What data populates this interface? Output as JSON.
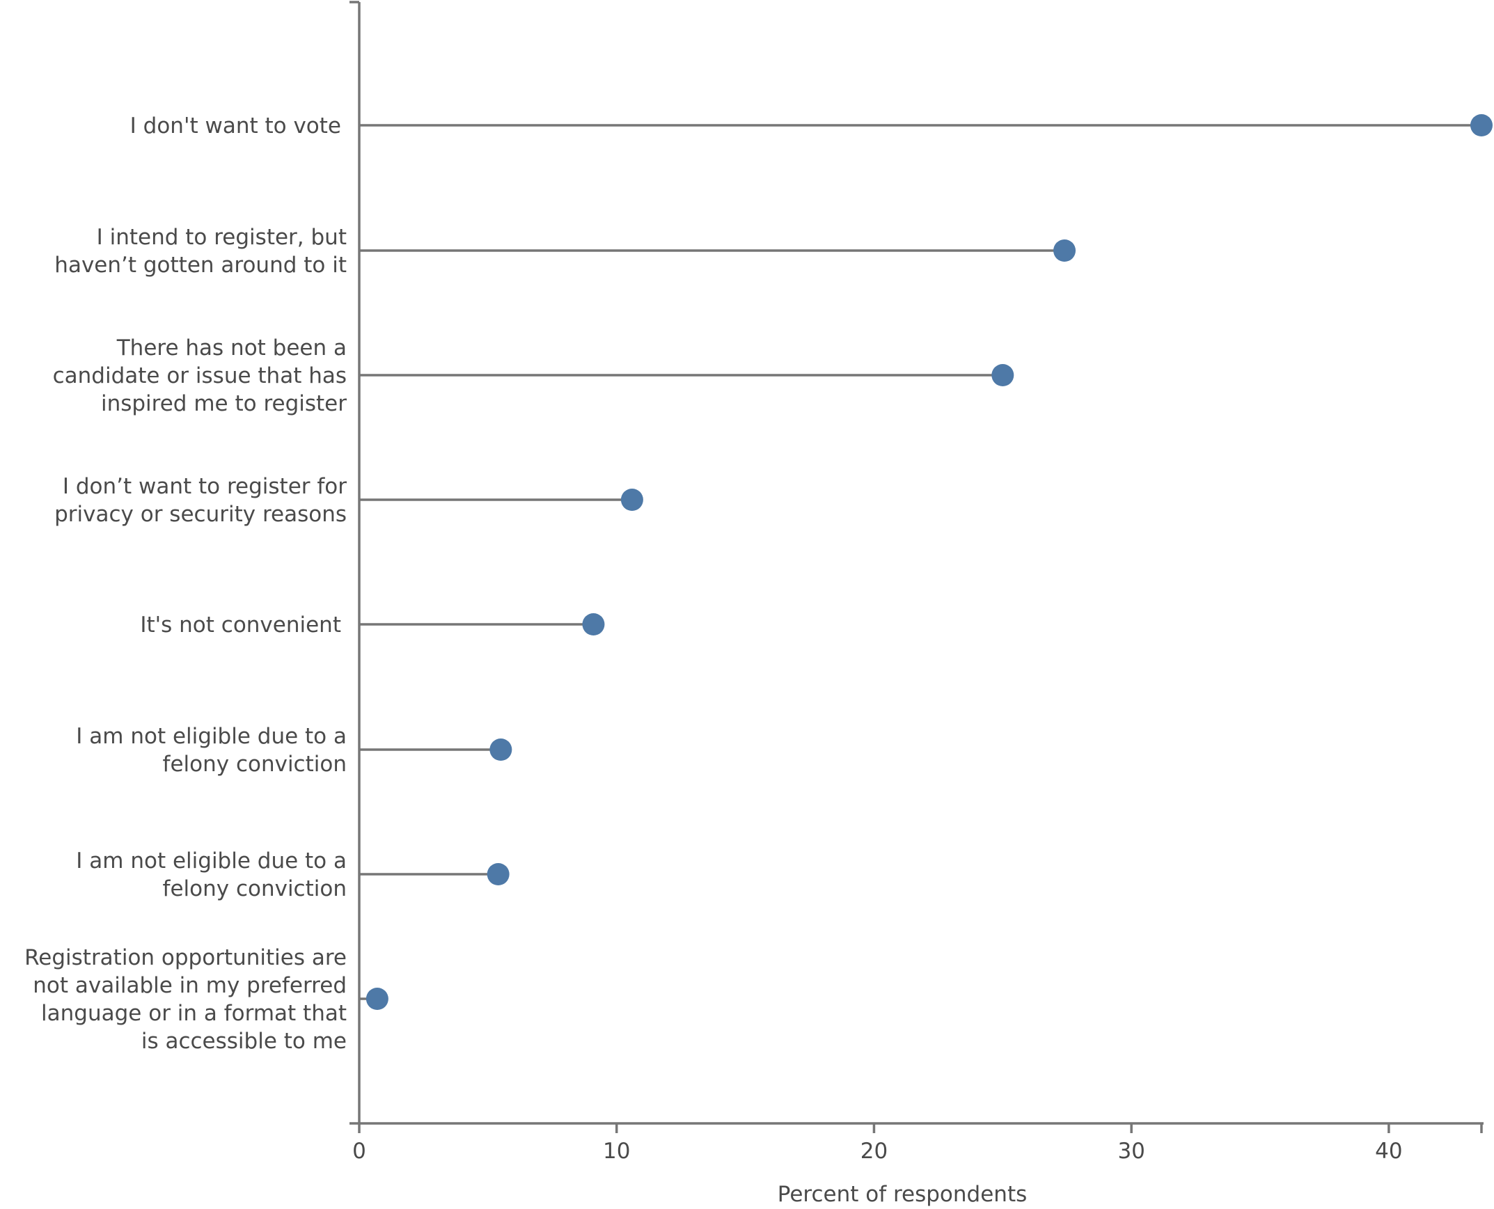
{
  "chart_data": {
    "type": "lollipop",
    "title": "",
    "xlabel": "Percent of respondents",
    "ylabel": "",
    "xlim": [
      0,
      43.6
    ],
    "xticks": [
      0,
      10,
      20,
      30,
      40
    ],
    "grid": false,
    "legend": "none",
    "colors": {
      "marker": "#4e79a7",
      "stem": "#767676",
      "axis": "#767676",
      "text": "#4a4a4a"
    },
    "categories": [
      [
        "I don't want to vote"
      ],
      [
        "I intend to register, but",
        "haven’t gotten around to it"
      ],
      [
        "There has not been a",
        "candidate or issue that has",
        "inspired me to register"
      ],
      [
        "I don’t want to register for",
        "privacy or security reasons"
      ],
      [
        "It's not convenient"
      ],
      [
        "I am not eligible due to a",
        "felony conviction"
      ],
      [
        "I am not eligible due to a",
        "felony conviction"
      ],
      [
        "Registration opportunities are",
        "not available in my preferred",
        "language or in a format that",
        "is accessible to me"
      ]
    ],
    "values": [
      43.6,
      27.4,
      25.0,
      10.6,
      9.1,
      5.5,
      5.4,
      0.7
    ]
  }
}
